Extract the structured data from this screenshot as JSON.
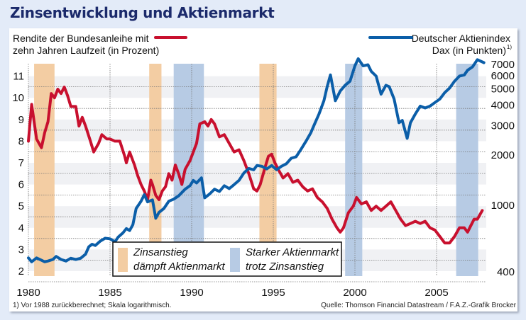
{
  "chart_data": {
    "type": "line",
    "title": "Zinsentwicklung und Aktienmarkt",
    "x_ticks": [
      1980,
      1985,
      1990,
      1995,
      2000,
      2005
    ],
    "xlim": [
      1980,
      2008
    ],
    "left_axis": {
      "label_line1": "Rendite der Bundesanleihe mit",
      "label_line2": "zehn Jahren Laufzeit (in Prozent)",
      "ticks": [
        2,
        3,
        4,
        5,
        6,
        7,
        8,
        9,
        10,
        11
      ],
      "ylim": [
        2,
        11.8
      ]
    },
    "right_axis": {
      "label_line1": "Deutscher Aktienindex",
      "label_line2": "Dax (in Punkten)",
      "footnote_mark": "1)",
      "scale": "log",
      "ticks": [
        400,
        1000,
        2000,
        3000,
        4000,
        5000,
        6000,
        7000
      ],
      "ylim": [
        400,
        7600
      ]
    },
    "series": [
      {
        "name": "Rendite der Bundesanleihe (zehn Jahre, %)",
        "axis": "left",
        "color": "#c8102e",
        "points": [
          [
            1980.0,
            8.0
          ],
          [
            1980.2,
            9.7
          ],
          [
            1980.5,
            8.1
          ],
          [
            1980.8,
            7.7
          ],
          [
            1981.0,
            8.4
          ],
          [
            1981.2,
            8.9
          ],
          [
            1981.4,
            10.2
          ],
          [
            1981.6,
            10.0
          ],
          [
            1981.8,
            10.4
          ],
          [
            1982.0,
            10.2
          ],
          [
            1982.2,
            10.5
          ],
          [
            1982.4,
            10.1
          ],
          [
            1982.6,
            9.6
          ],
          [
            1982.9,
            9.6
          ],
          [
            1983.1,
            8.7
          ],
          [
            1983.3,
            9.1
          ],
          [
            1983.5,
            8.7
          ],
          [
            1983.8,
            8.0
          ],
          [
            1984.0,
            7.5
          ],
          [
            1984.3,
            7.9
          ],
          [
            1984.5,
            8.3
          ],
          [
            1984.8,
            8.1
          ],
          [
            1985.0,
            8.1
          ],
          [
            1985.3,
            8.0
          ],
          [
            1985.6,
            8.0
          ],
          [
            1985.9,
            7.3
          ],
          [
            1986.0,
            7.0
          ],
          [
            1986.2,
            7.5
          ],
          [
            1986.5,
            6.9
          ],
          [
            1986.7,
            6.4
          ],
          [
            1986.9,
            6.0
          ],
          [
            1987.1,
            5.7
          ],
          [
            1987.3,
            5.3
          ],
          [
            1987.5,
            6.2
          ],
          [
            1987.6,
            6.0
          ],
          [
            1987.8,
            5.5
          ],
          [
            1988.0,
            5.3
          ],
          [
            1988.2,
            5.7
          ],
          [
            1988.4,
            5.9
          ],
          [
            1988.6,
            6.5
          ],
          [
            1988.8,
            6.2
          ],
          [
            1989.0,
            6.9
          ],
          [
            1989.2,
            6.5
          ],
          [
            1989.4,
            6.0
          ],
          [
            1989.6,
            6.7
          ],
          [
            1989.9,
            7.1
          ],
          [
            1990.1,
            7.5
          ],
          [
            1990.3,
            7.9
          ],
          [
            1990.5,
            8.8
          ],
          [
            1990.8,
            8.9
          ],
          [
            1991.0,
            8.7
          ],
          [
            1991.2,
            9.0
          ],
          [
            1991.4,
            8.8
          ],
          [
            1991.7,
            8.2
          ],
          [
            1992.0,
            8.3
          ],
          [
            1992.3,
            7.9
          ],
          [
            1992.6,
            7.5
          ],
          [
            1992.9,
            7.6
          ],
          [
            1993.2,
            7.1
          ],
          [
            1993.5,
            6.5
          ],
          [
            1993.8,
            5.8
          ],
          [
            1994.0,
            5.7
          ],
          [
            1994.2,
            6.0
          ],
          [
            1994.5,
            6.8
          ],
          [
            1994.7,
            7.3
          ],
          [
            1994.9,
            7.4
          ],
          [
            1995.1,
            7.0
          ],
          [
            1995.3,
            6.7
          ],
          [
            1995.6,
            6.3
          ],
          [
            1995.9,
            6.5
          ],
          [
            1996.2,
            6.1
          ],
          [
            1996.5,
            6.2
          ],
          [
            1996.8,
            5.9
          ],
          [
            1997.1,
            5.7
          ],
          [
            1997.4,
            5.8
          ],
          [
            1997.7,
            5.4
          ],
          [
            1998.0,
            5.2
          ],
          [
            1998.3,
            4.9
          ],
          [
            1998.6,
            4.4
          ],
          [
            1998.9,
            4.0
          ],
          [
            1999.1,
            3.8
          ],
          [
            1999.3,
            4.0
          ],
          [
            1999.6,
            4.7
          ],
          [
            1999.9,
            5.0
          ],
          [
            2000.1,
            5.4
          ],
          [
            2000.4,
            5.1
          ],
          [
            2000.7,
            5.2
          ],
          [
            2001.0,
            4.8
          ],
          [
            2001.3,
            5.0
          ],
          [
            2001.6,
            4.8
          ],
          [
            2001.9,
            5.0
          ],
          [
            2002.2,
            5.2
          ],
          [
            2002.5,
            4.8
          ],
          [
            2002.8,
            4.4
          ],
          [
            2003.1,
            4.1
          ],
          [
            2003.4,
            4.2
          ],
          [
            2003.7,
            4.3
          ],
          [
            2004.0,
            4.2
          ],
          [
            2004.3,
            4.3
          ],
          [
            2004.6,
            4.0
          ],
          [
            2004.9,
            3.9
          ],
          [
            2005.2,
            3.6
          ],
          [
            2005.5,
            3.3
          ],
          [
            2005.8,
            3.3
          ],
          [
            2006.1,
            3.6
          ],
          [
            2006.4,
            4.0
          ],
          [
            2006.7,
            4.0
          ],
          [
            2006.9,
            3.8
          ],
          [
            2007.1,
            4.1
          ],
          [
            2007.3,
            4.4
          ],
          [
            2007.5,
            4.4
          ],
          [
            2007.8,
            4.8
          ]
        ]
      },
      {
        "name": "Deutscher Aktienindex Dax (Punkte)",
        "axis": "right",
        "color": "#0b5ea8",
        "points": [
          [
            1980.0,
            480
          ],
          [
            1980.2,
            455
          ],
          [
            1980.5,
            480
          ],
          [
            1980.8,
            465
          ],
          [
            1981.0,
            455
          ],
          [
            1981.2,
            460
          ],
          [
            1981.5,
            470
          ],
          [
            1981.7,
            490
          ],
          [
            1982.0,
            470
          ],
          [
            1982.3,
            460
          ],
          [
            1982.6,
            478
          ],
          [
            1982.9,
            470
          ],
          [
            1983.2,
            478
          ],
          [
            1983.5,
            505
          ],
          [
            1983.7,
            560
          ],
          [
            1983.9,
            580
          ],
          [
            1984.1,
            570
          ],
          [
            1984.4,
            605
          ],
          [
            1984.7,
            630
          ],
          [
            1985.0,
            625
          ],
          [
            1985.3,
            600
          ],
          [
            1985.5,
            640
          ],
          [
            1985.8,
            680
          ],
          [
            1986.0,
            720
          ],
          [
            1986.2,
            700
          ],
          [
            1986.4,
            760
          ],
          [
            1986.6,
            950
          ],
          [
            1986.9,
            1050
          ],
          [
            1987.1,
            1150
          ],
          [
            1987.3,
            1040
          ],
          [
            1987.6,
            1070
          ],
          [
            1987.8,
            830
          ],
          [
            1988.0,
            900
          ],
          [
            1988.3,
            950
          ],
          [
            1988.6,
            1050
          ],
          [
            1988.9,
            1080
          ],
          [
            1989.2,
            1130
          ],
          [
            1989.6,
            1240
          ],
          [
            1989.9,
            1300
          ],
          [
            1990.1,
            1400
          ],
          [
            1990.3,
            1350
          ],
          [
            1990.6,
            1450
          ],
          [
            1990.8,
            1100
          ],
          [
            1991.1,
            1160
          ],
          [
            1991.4,
            1240
          ],
          [
            1991.7,
            1200
          ],
          [
            1992.0,
            1300
          ],
          [
            1992.3,
            1250
          ],
          [
            1992.6,
            1320
          ],
          [
            1992.9,
            1400
          ],
          [
            1993.2,
            1550
          ],
          [
            1993.5,
            1650
          ],
          [
            1993.8,
            1620
          ],
          [
            1994.0,
            1720
          ],
          [
            1994.3,
            1700
          ],
          [
            1994.6,
            1640
          ],
          [
            1994.9,
            1720
          ],
          [
            1995.2,
            1620
          ],
          [
            1995.5,
            1700
          ],
          [
            1995.8,
            1760
          ],
          [
            1996.1,
            1900
          ],
          [
            1996.4,
            1940
          ],
          [
            1996.7,
            2150
          ],
          [
            1997.0,
            2400
          ],
          [
            1997.3,
            2700
          ],
          [
            1997.5,
            3000
          ],
          [
            1997.8,
            3500
          ],
          [
            1998.1,
            4200
          ],
          [
            1998.3,
            5100
          ],
          [
            1998.5,
            6000
          ],
          [
            1998.8,
            4200
          ],
          [
            1999.1,
            4800
          ],
          [
            1999.4,
            5200
          ],
          [
            1999.7,
            5500
          ],
          [
            2000.0,
            6800
          ],
          [
            2000.2,
            7500
          ],
          [
            2000.5,
            6800
          ],
          [
            2000.8,
            6900
          ],
          [
            2001.0,
            6300
          ],
          [
            2001.3,
            5900
          ],
          [
            2001.6,
            4600
          ],
          [
            2001.9,
            5200
          ],
          [
            2002.1,
            5100
          ],
          [
            2002.4,
            4300
          ],
          [
            2002.7,
            3100
          ],
          [
            2002.9,
            3200
          ],
          [
            2003.2,
            2500
          ],
          [
            2003.4,
            3100
          ],
          [
            2003.7,
            3500
          ],
          [
            2004.0,
            3900
          ],
          [
            2004.3,
            3800
          ],
          [
            2004.6,
            3900
          ],
          [
            2004.9,
            4100
          ],
          [
            2005.2,
            4300
          ],
          [
            2005.5,
            4700
          ],
          [
            2005.8,
            5000
          ],
          [
            2006.1,
            5500
          ],
          [
            2006.4,
            5900
          ],
          [
            2006.7,
            6000
          ],
          [
            2006.9,
            6400
          ],
          [
            2007.2,
            6700
          ],
          [
            2007.5,
            7400
          ],
          [
            2007.9,
            7100
          ]
        ]
      }
    ],
    "shaded_periods": [
      {
        "type": "rate_hike",
        "start": 1980.35,
        "end": 1981.6
      },
      {
        "type": "rate_hike",
        "start": 1987.4,
        "end": 1988.15
      },
      {
        "type": "rate_hike",
        "start": 1994.15,
        "end": 1995.2
      },
      {
        "type": "strong_market",
        "start": 1988.9,
        "end": 1990.75
      },
      {
        "type": "strong_market",
        "start": 1999.4,
        "end": 2000.45
      },
      {
        "type": "strong_market",
        "start": 2006.2,
        "end": 2007.55
      }
    ],
    "legend": {
      "rate_hike_line1": "Zinsanstieg",
      "rate_hike_line2": "dämpft Aktienmarkt",
      "strong_market_line1": "Starker Aktienmarkt",
      "strong_market_line2": "trotz Zinsanstieg",
      "placement": "bottom-center"
    },
    "colors": {
      "rate_hike": "#f3cda3",
      "strong_market": "#b7cbe4",
      "rendite": "#c8102e",
      "dax": "#0b5ea8",
      "title": "#1b2a6b"
    },
    "footnote": "1) Vor 1988 zurückberechnet; Skala logarithmisch.",
    "source": "Quelle: Thomson Financial Datastream / F.A.Z.-Grafik Brocker"
  }
}
